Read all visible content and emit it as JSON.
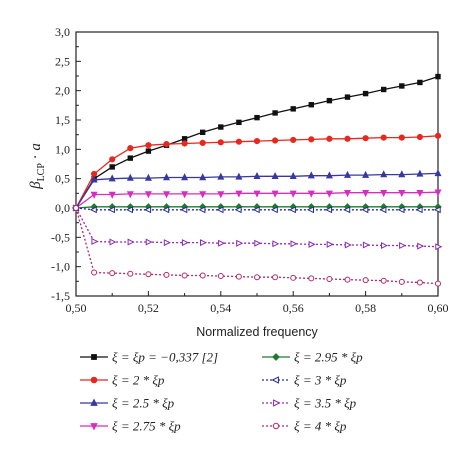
{
  "chart_data": {
    "type": "line",
    "xlabel": "Normalized frequency",
    "ylabel": "βLCP · a",
    "xlim": [
      0.5,
      0.6
    ],
    "ylim": [
      -1.5,
      3.0
    ],
    "xticks": [
      0.5,
      0.52,
      0.54,
      0.56,
      0.58,
      0.6
    ],
    "xtick_labels": [
      "0,50",
      "0,52",
      "0,54",
      "0,56",
      "0,58",
      "0,60"
    ],
    "yticks": [
      -1.5,
      -1.0,
      -0.5,
      0.0,
      0.5,
      1.0,
      1.5,
      2.0,
      2.5,
      3.0
    ],
    "ytick_labels": [
      "-1,5",
      "-1,0",
      "-0,5",
      "0,0",
      "0,5",
      "1,0",
      "1,5",
      "2,0",
      "2,5",
      "3,0"
    ],
    "grid": false,
    "legend_position": "bottom",
    "series": [
      {
        "name": "ξ = ξp = −0,337 [2]",
        "color": "#111111",
        "marker": "square",
        "dash": false,
        "x": [
          0.5,
          0.505,
          0.51,
          0.515,
          0.52,
          0.525,
          0.53,
          0.535,
          0.54,
          0.545,
          0.55,
          0.555,
          0.56,
          0.565,
          0.57,
          0.575,
          0.58,
          0.585,
          0.59,
          0.595,
          0.6
        ],
        "y": [
          0.0,
          0.5,
          0.7,
          0.85,
          0.97,
          1.07,
          1.18,
          1.29,
          1.38,
          1.46,
          1.54,
          1.62,
          1.69,
          1.76,
          1.83,
          1.89,
          1.95,
          2.02,
          2.08,
          2.14,
          2.24
        ]
      },
      {
        "name": "ξ = 2 * ξp",
        "color": "#e8281e",
        "marker": "circle",
        "dash": false,
        "x": [
          0.5,
          0.505,
          0.51,
          0.515,
          0.52,
          0.525,
          0.53,
          0.535,
          0.54,
          0.545,
          0.55,
          0.555,
          0.56,
          0.565,
          0.57,
          0.575,
          0.58,
          0.585,
          0.59,
          0.595,
          0.6
        ],
        "y": [
          0.0,
          0.58,
          0.83,
          1.02,
          1.07,
          1.09,
          1.1,
          1.11,
          1.12,
          1.13,
          1.14,
          1.15,
          1.16,
          1.17,
          1.18,
          1.18,
          1.19,
          1.2,
          1.2,
          1.21,
          1.23
        ]
      },
      {
        "name": "ξ = 2.5 * ξp",
        "color": "#3838a0",
        "marker": "triangle-up",
        "dash": false,
        "x": [
          0.5,
          0.505,
          0.51,
          0.515,
          0.52,
          0.525,
          0.53,
          0.535,
          0.54,
          0.545,
          0.55,
          0.555,
          0.56,
          0.565,
          0.57,
          0.575,
          0.58,
          0.585,
          0.59,
          0.595,
          0.6
        ],
        "y": [
          0.0,
          0.48,
          0.5,
          0.51,
          0.51,
          0.52,
          0.52,
          0.52,
          0.53,
          0.53,
          0.54,
          0.54,
          0.54,
          0.55,
          0.55,
          0.56,
          0.56,
          0.57,
          0.57,
          0.58,
          0.59
        ]
      },
      {
        "name": "ξ = 2.75 * ξp",
        "color": "#d62ec0",
        "marker": "triangle-down",
        "dash": false,
        "x": [
          0.5,
          0.505,
          0.51,
          0.515,
          0.52,
          0.525,
          0.53,
          0.535,
          0.54,
          0.545,
          0.55,
          0.555,
          0.56,
          0.565,
          0.57,
          0.575,
          0.58,
          0.585,
          0.59,
          0.595,
          0.6
        ],
        "y": [
          0.0,
          0.23,
          0.23,
          0.24,
          0.24,
          0.24,
          0.24,
          0.24,
          0.24,
          0.25,
          0.25,
          0.25,
          0.25,
          0.25,
          0.25,
          0.26,
          0.26,
          0.26,
          0.26,
          0.26,
          0.27
        ]
      },
      {
        "name": "ξ = 2.95 * ξp",
        "color": "#1f7a30",
        "marker": "diamond",
        "dash": false,
        "x": [
          0.5,
          0.505,
          0.51,
          0.515,
          0.52,
          0.525,
          0.53,
          0.535,
          0.54,
          0.545,
          0.55,
          0.555,
          0.56,
          0.565,
          0.57,
          0.575,
          0.58,
          0.585,
          0.59,
          0.595,
          0.6
        ],
        "y": [
          0.0,
          0.02,
          0.02,
          0.02,
          0.02,
          0.02,
          0.02,
          0.02,
          0.02,
          0.02,
          0.02,
          0.02,
          0.02,
          0.02,
          0.02,
          0.02,
          0.02,
          0.02,
          0.02,
          0.02,
          0.02
        ]
      },
      {
        "name": "ξ = 3 * ξp",
        "color": "#2a2a90",
        "marker": "triangle-left",
        "dash": true,
        "x": [
          0.5,
          0.505,
          0.51,
          0.515,
          0.52,
          0.525,
          0.53,
          0.535,
          0.54,
          0.545,
          0.55,
          0.555,
          0.56,
          0.565,
          0.57,
          0.575,
          0.58,
          0.585,
          0.59,
          0.595,
          0.6
        ],
        "y": [
          0.0,
          -0.03,
          -0.03,
          -0.03,
          -0.03,
          -0.03,
          -0.03,
          -0.03,
          -0.03,
          -0.03,
          -0.03,
          -0.03,
          -0.03,
          -0.03,
          -0.03,
          -0.03,
          -0.03,
          -0.03,
          -0.03,
          -0.03,
          -0.03
        ]
      },
      {
        "name": "ξ = 3.5 * ξp",
        "color": "#8a2ab0",
        "marker": "triangle-right",
        "dash": true,
        "x": [
          0.5,
          0.505,
          0.51,
          0.515,
          0.52,
          0.525,
          0.53,
          0.535,
          0.54,
          0.545,
          0.55,
          0.555,
          0.56,
          0.565,
          0.57,
          0.575,
          0.58,
          0.585,
          0.59,
          0.595,
          0.6
        ],
        "y": [
          0.0,
          -0.57,
          -0.58,
          -0.58,
          -0.58,
          -0.59,
          -0.59,
          -0.59,
          -0.6,
          -0.6,
          -0.6,
          -0.61,
          -0.61,
          -0.62,
          -0.62,
          -0.63,
          -0.63,
          -0.64,
          -0.64,
          -0.65,
          -0.66
        ]
      },
      {
        "name": "ξ = 4 * ξp",
        "color": "#b02a6a",
        "marker": "circle-open",
        "dash": true,
        "x": [
          0.5,
          0.505,
          0.51,
          0.515,
          0.52,
          0.525,
          0.53,
          0.535,
          0.54,
          0.545,
          0.55,
          0.555,
          0.56,
          0.565,
          0.57,
          0.575,
          0.58,
          0.585,
          0.59,
          0.595,
          0.6
        ],
        "y": [
          0.0,
          -1.1,
          -1.11,
          -1.12,
          -1.13,
          -1.14,
          -1.15,
          -1.15,
          -1.16,
          -1.17,
          -1.18,
          -1.18,
          -1.19,
          -1.2,
          -1.21,
          -1.22,
          -1.23,
          -1.24,
          -1.26,
          -1.27,
          -1.29
        ]
      }
    ]
  }
}
